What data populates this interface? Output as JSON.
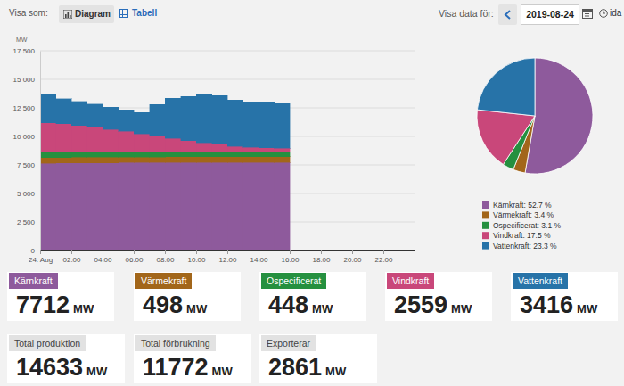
{
  "header": {
    "view_label": "Visa som:",
    "buttons": [
      "Diagram",
      "Tabell"
    ],
    "date_label": "Visa data för:",
    "date": "2019-08-24",
    "today": "ida"
  },
  "chart_data": [
    {
      "type": "bar",
      "stacked": true,
      "y_label": "MW",
      "x": [
        0,
        1,
        2,
        3,
        4,
        5,
        6,
        7,
        8,
        9,
        10,
        11,
        12,
        13,
        14,
        15
      ],
      "xlim": [
        0,
        24
      ],
      "xticks": [
        {
          "value": 0,
          "label": "24. Aug"
        },
        {
          "value": 2,
          "label": "02:00"
        },
        {
          "value": 4,
          "label": "04:00"
        },
        {
          "value": 6,
          "label": "06:00"
        },
        {
          "value": 8,
          "label": "08:00"
        },
        {
          "value": 10,
          "label": "10:00"
        },
        {
          "value": 12,
          "label": "12:00"
        },
        {
          "value": 14,
          "label": "14:00"
        },
        {
          "value": 16,
          "label": "16:00"
        },
        {
          "value": 18,
          "label": "18:00"
        },
        {
          "value": 20,
          "label": "20:00"
        },
        {
          "value": 22,
          "label": "22:00"
        }
      ],
      "ylim": [
        0,
        17500
      ],
      "yticks": [
        0,
        {
          "value": 2500,
          "label": "2 500"
        },
        {
          "value": 5000,
          "label": "5 000"
        },
        {
          "value": 7500,
          "label": "7 500"
        },
        {
          "value": 10000,
          "label": "10 000"
        },
        {
          "value": 12500,
          "label": "12 500"
        },
        {
          "value": 15000,
          "label": "15 000"
        },
        {
          "value": 17500,
          "label": "17 500"
        }
      ],
      "grid": true,
      "series": [
        {
          "color": "#8e5a9c",
          "values": [
            7650,
            7660,
            7670,
            7680,
            7690,
            7700,
            7700,
            7700,
            7710,
            7710,
            7710,
            7710,
            7710,
            7710,
            7710,
            7710
          ]
        },
        {
          "color": "#a2661a",
          "values": [
            500,
            500,
            495,
            495,
            490,
            490,
            490,
            495,
            500,
            500,
            500,
            500,
            500,
            500,
            500,
            500
          ]
        },
        {
          "color": "#25903f",
          "values": [
            460,
            460,
            460,
            455,
            455,
            450,
            450,
            450,
            450,
            450,
            450,
            450,
            450,
            450,
            450,
            450
          ]
        },
        {
          "color": "#c9477a",
          "values": [
            2580,
            2500,
            2330,
            2200,
            1960,
            1800,
            1560,
            1400,
            1170,
            950,
            780,
            640,
            470,
            400,
            330,
            310
          ]
        },
        {
          "color": "#2773a8",
          "values": [
            2500,
            2190,
            2125,
            2020,
            1950,
            1870,
            1880,
            2740,
            3520,
            3900,
            4220,
            4280,
            4060,
            3980,
            4050,
            3910
          ]
        }
      ]
    },
    {
      "type": "pie",
      "legend": "bottom",
      "categories": [
        "Kärnkraft: 52.7 %",
        "Värmekraft: 3.4 %",
        "Ospecificerat: 3.1 %",
        "Vindkraft: 17.5 %",
        "Vattenkraft: 23.3 %"
      ],
      "values": [
        52.7,
        3.4,
        3.1,
        17.5,
        23.3
      ],
      "colors": [
        "#8e5a9c",
        "#a2661a",
        "#25903f",
        "#c9477a",
        "#2773a8"
      ]
    }
  ],
  "cards": [
    {
      "title": "Kärnkraft",
      "value": 7712,
      "unit": "MW",
      "color": "#8e5a9c"
    },
    {
      "title": "Värmekraft",
      "value": 498,
      "unit": "MW",
      "color": "#a2661a"
    },
    {
      "title": "Ospecificerat",
      "value": 448,
      "unit": "MW",
      "color": "#25903f"
    },
    {
      "title": "Vindkraft",
      "value": 2559,
      "unit": "MW",
      "color": "#c9477a"
    },
    {
      "title": "Vattenkraft",
      "value": 3416,
      "unit": "MW",
      "color": "#2773a8"
    }
  ],
  "totals": [
    {
      "title": "Total produktion",
      "value": 14633,
      "unit": "MW"
    },
    {
      "title": "Total förbrukning",
      "value": 11772,
      "unit": "MW"
    },
    {
      "title": "Exporterar",
      "value": 2861,
      "unit": "MW"
    }
  ]
}
